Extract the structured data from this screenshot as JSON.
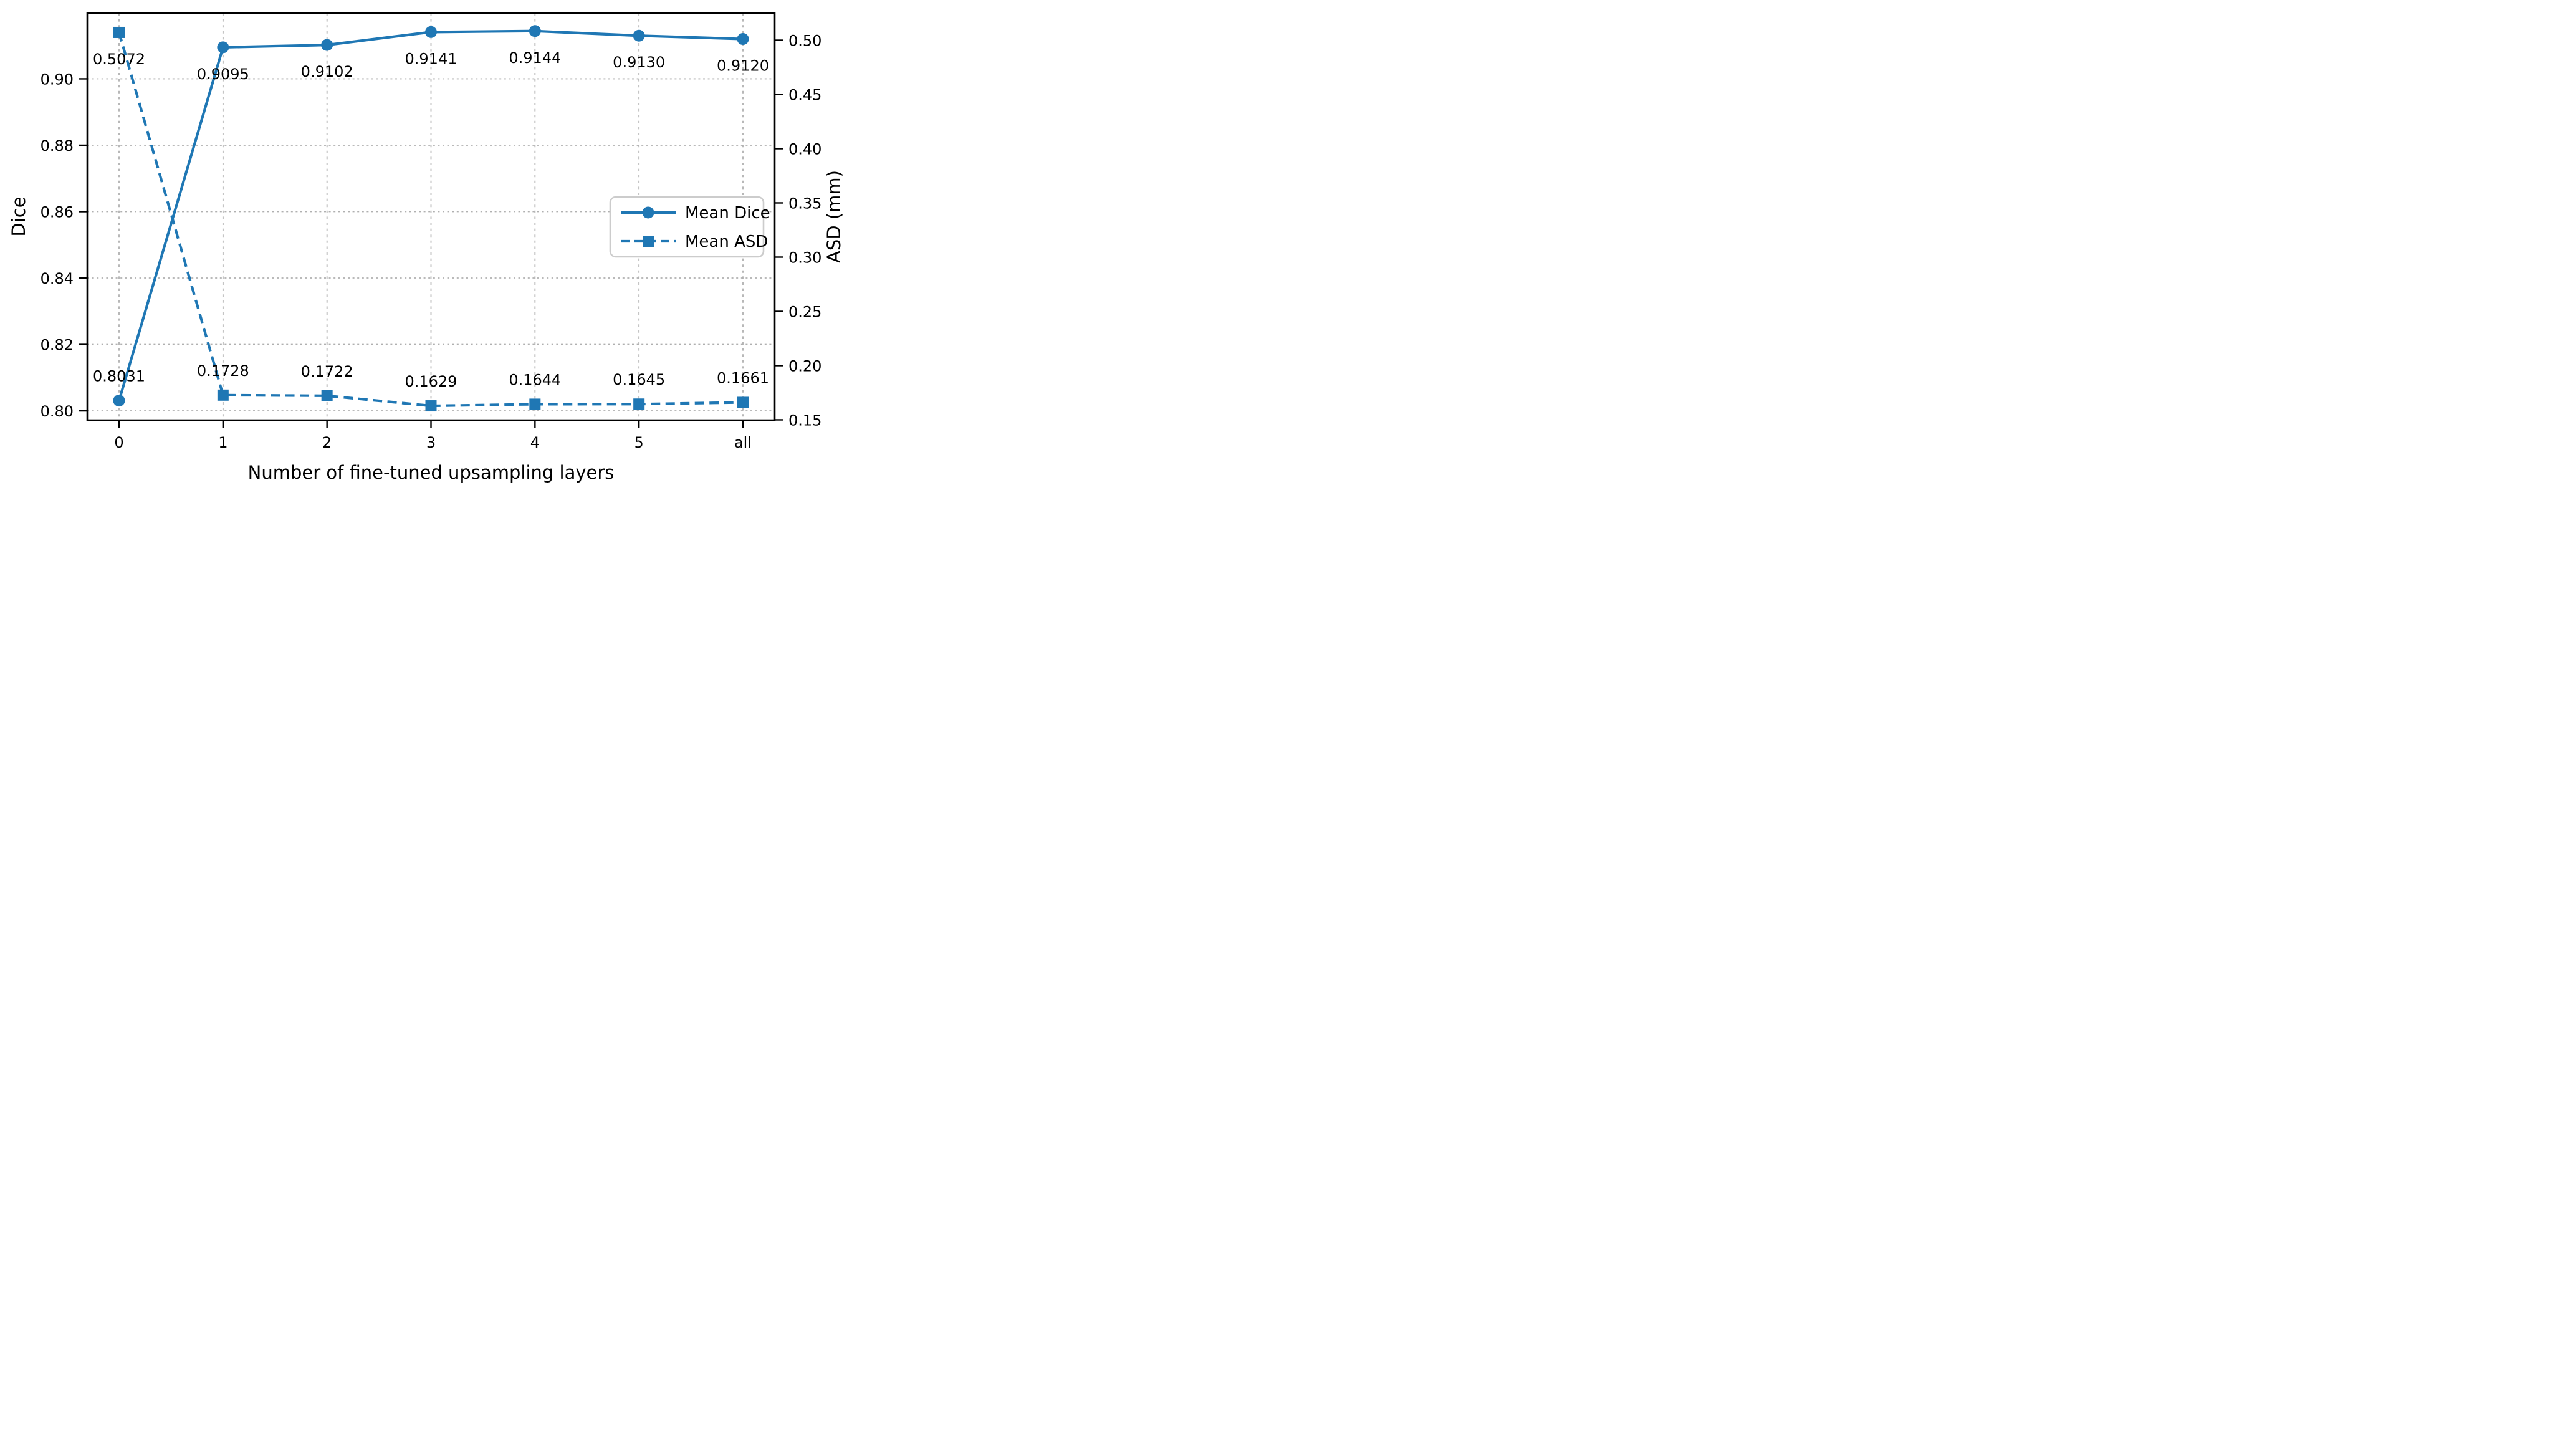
{
  "figure": {
    "background": "#ffffff"
  },
  "chart_data": {
    "type": "line",
    "title": "",
    "xlabel": "Number of fine-tuned upsampling layers",
    "ylabel_left": "Dice",
    "ylabel_right": "ASD (mm)",
    "categories": [
      "0",
      "1",
      "2",
      "3",
      "4",
      "5",
      "all"
    ],
    "series": [
      {
        "name": "Mean Dice",
        "axis": "left",
        "line_style": "solid",
        "marker": "circle",
        "values": [
          0.8031,
          0.9095,
          0.9102,
          0.9141,
          0.9144,
          0.913,
          0.912
        ],
        "value_labels": [
          "0.8031",
          "0.9095",
          "0.9102",
          "0.9141",
          "0.9144",
          "0.9130",
          "0.9120"
        ]
      },
      {
        "name": "Mean ASD",
        "axis": "right",
        "line_style": "dashed",
        "marker": "square",
        "values": [
          0.5072,
          0.1728,
          0.1722,
          0.1629,
          0.1644,
          0.1645,
          0.1661
        ],
        "value_labels": [
          "0.5072",
          "0.1728",
          "0.1722",
          "0.1629",
          "0.1644",
          "0.1645",
          "0.1661"
        ]
      }
    ],
    "left_axis": {
      "label": "Dice",
      "tick_labels": [
        "0.80",
        "0.82",
        "0.84",
        "0.86",
        "0.88",
        "0.90"
      ],
      "tick_values": [
        0.8,
        0.82,
        0.84,
        0.86,
        0.88,
        0.9
      ],
      "ylim": [
        0.7972,
        0.9198
      ]
    },
    "right_axis": {
      "label": "ASD (mm)",
      "tick_labels": [
        "0.15",
        "0.20",
        "0.25",
        "0.30",
        "0.35",
        "0.40",
        "0.45",
        "0.50"
      ],
      "tick_values": [
        0.15,
        0.2,
        0.25,
        0.3,
        0.35,
        0.4,
        0.45,
        0.5
      ],
      "ylim": [
        0.1497,
        0.525
      ]
    },
    "legend": {
      "position": "center-right",
      "entries": [
        {
          "label": "Mean Dice",
          "line_style": "solid",
          "marker": "circle"
        },
        {
          "label": "Mean ASD",
          "line_style": "dashed",
          "marker": "square"
        }
      ]
    },
    "grid": {
      "vertical": true,
      "horizontal": true
    },
    "colors": {
      "series": "#1f77b4",
      "grid": "#b0b0b0",
      "spine": "#000000",
      "legend_border": "#cccccc",
      "background": "#ffffff"
    }
  }
}
